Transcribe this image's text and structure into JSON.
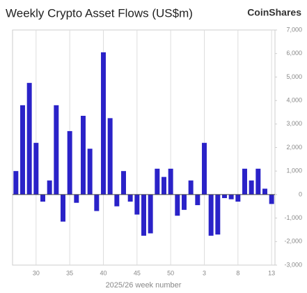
{
  "chart_data": {
    "type": "bar",
    "title": "Weekly Crypto Asset Flows (US$m)",
    "brand": "CoinShares",
    "x_label": "2025/26 week number",
    "categories": [
      null,
      null,
      null,
      "30",
      null,
      null,
      null,
      null,
      "35",
      null,
      null,
      null,
      null,
      "40",
      null,
      null,
      null,
      null,
      "45",
      null,
      null,
      null,
      null,
      "50",
      null,
      null,
      null,
      null,
      "3",
      null,
      null,
      null,
      null,
      "8",
      null,
      null,
      null,
      null,
      "13"
    ],
    "values": [
      1000,
      3800,
      4750,
      2200,
      -300,
      600,
      3800,
      -1150,
      2700,
      -350,
      3350,
      1950,
      -700,
      6050,
      3250,
      -500,
      1000,
      -300,
      -850,
      -1750,
      -1650,
      1100,
      750,
      1100,
      -900,
      -650,
      600,
      -450,
      2200,
      -1750,
      -1700,
      -150,
      -200,
      -300,
      1100,
      600,
      1100,
      250,
      -400
    ],
    "color": "#2a22c8",
    "ylim": [
      -3000,
      7000
    ],
    "yticks": [
      {
        "value": -3000,
        "label": "-3,000"
      },
      {
        "value": -2000,
        "label": "-2,000"
      },
      {
        "value": -1000,
        "label": "-1,000"
      },
      0,
      {
        "value": 1000,
        "label": "1,000"
      },
      {
        "value": 2000,
        "label": "2,000"
      },
      {
        "value": 3000,
        "label": "3,000"
      },
      {
        "value": 4000,
        "label": "4,000"
      },
      {
        "value": 5000,
        "label": "5,000"
      },
      {
        "value": 6000,
        "label": "6,000"
      },
      {
        "value": 7000,
        "label": "7,000"
      }
    ],
    "grid": "x"
  }
}
